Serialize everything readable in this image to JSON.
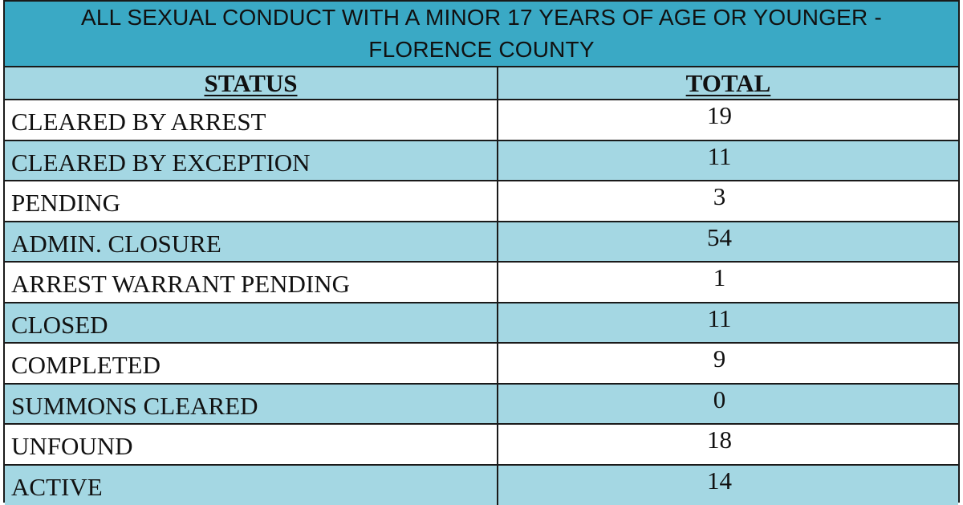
{
  "title": {
    "line1": "ALL SEXUAL CONDUCT WITH A MINOR 17 YEARS OF AGE OR YOUNGER -",
    "line2": "FLORENCE COUNTY"
  },
  "headers": {
    "status": "STATUS",
    "total": "TOTAL"
  },
  "rows": [
    {
      "status": "CLEARED BY ARREST",
      "total": "19"
    },
    {
      "status": "CLEARED BY EXCEPTION",
      "total": "11"
    },
    {
      "status": "PENDING",
      "total": "3"
    },
    {
      "status": "ADMIN. CLOSURE",
      "total": "54"
    },
    {
      "status": "ARREST WARRANT PENDING",
      "total": "1"
    },
    {
      "status": "CLOSED",
      "total": "11"
    },
    {
      "status": "COMPLETED",
      "total": "9"
    },
    {
      "status": "SUMMONS CLEARED",
      "total": "0"
    },
    {
      "status": "UNFOUND",
      "total": "18"
    },
    {
      "status": "ACTIVE",
      "total": "14"
    }
  ],
  "colors": {
    "title_background": "#3aa9c5",
    "alt_row_background": "#a4d7e3",
    "plain_row_background": "#ffffff",
    "border": "#1a1a1a"
  }
}
